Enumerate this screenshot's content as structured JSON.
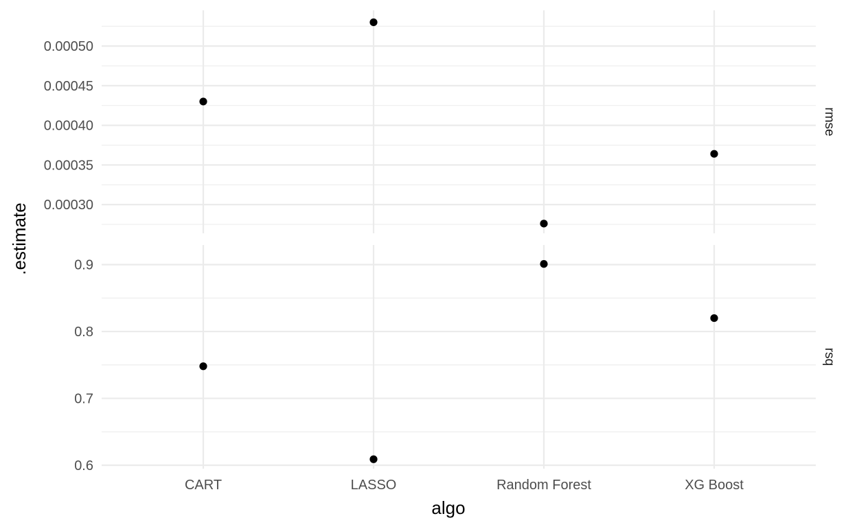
{
  "chart_data": {
    "type": "scatter",
    "xlabel": "algo",
    "ylabel": ".estimate",
    "categories": [
      "CART",
      "LASSO",
      "Random Forest",
      "XG Boost"
    ],
    "facets": [
      {
        "name": "rmse",
        "ylim": [
          0.000275,
          0.000533
        ],
        "yticks": [
          0.0003,
          0.00035,
          0.0004,
          0.00045,
          0.0005
        ],
        "ytick_labels": [
          "0.00030",
          "0.00035",
          "0.00040",
          "0.00045",
          "0.00050"
        ],
        "values": [
          0.00043,
          0.00053,
          0.000276,
          0.000364
        ]
      },
      {
        "name": "rsq",
        "ylim": [
          0.6,
          0.915
        ],
        "yticks": [
          0.6,
          0.7,
          0.8,
          0.9
        ],
        "ytick_labels": [
          "0.6",
          "0.7",
          "0.8",
          "0.9"
        ],
        "values": [
          0.748,
          0.609,
          0.901,
          0.82
        ]
      }
    ],
    "grid": true,
    "legend": "none"
  }
}
